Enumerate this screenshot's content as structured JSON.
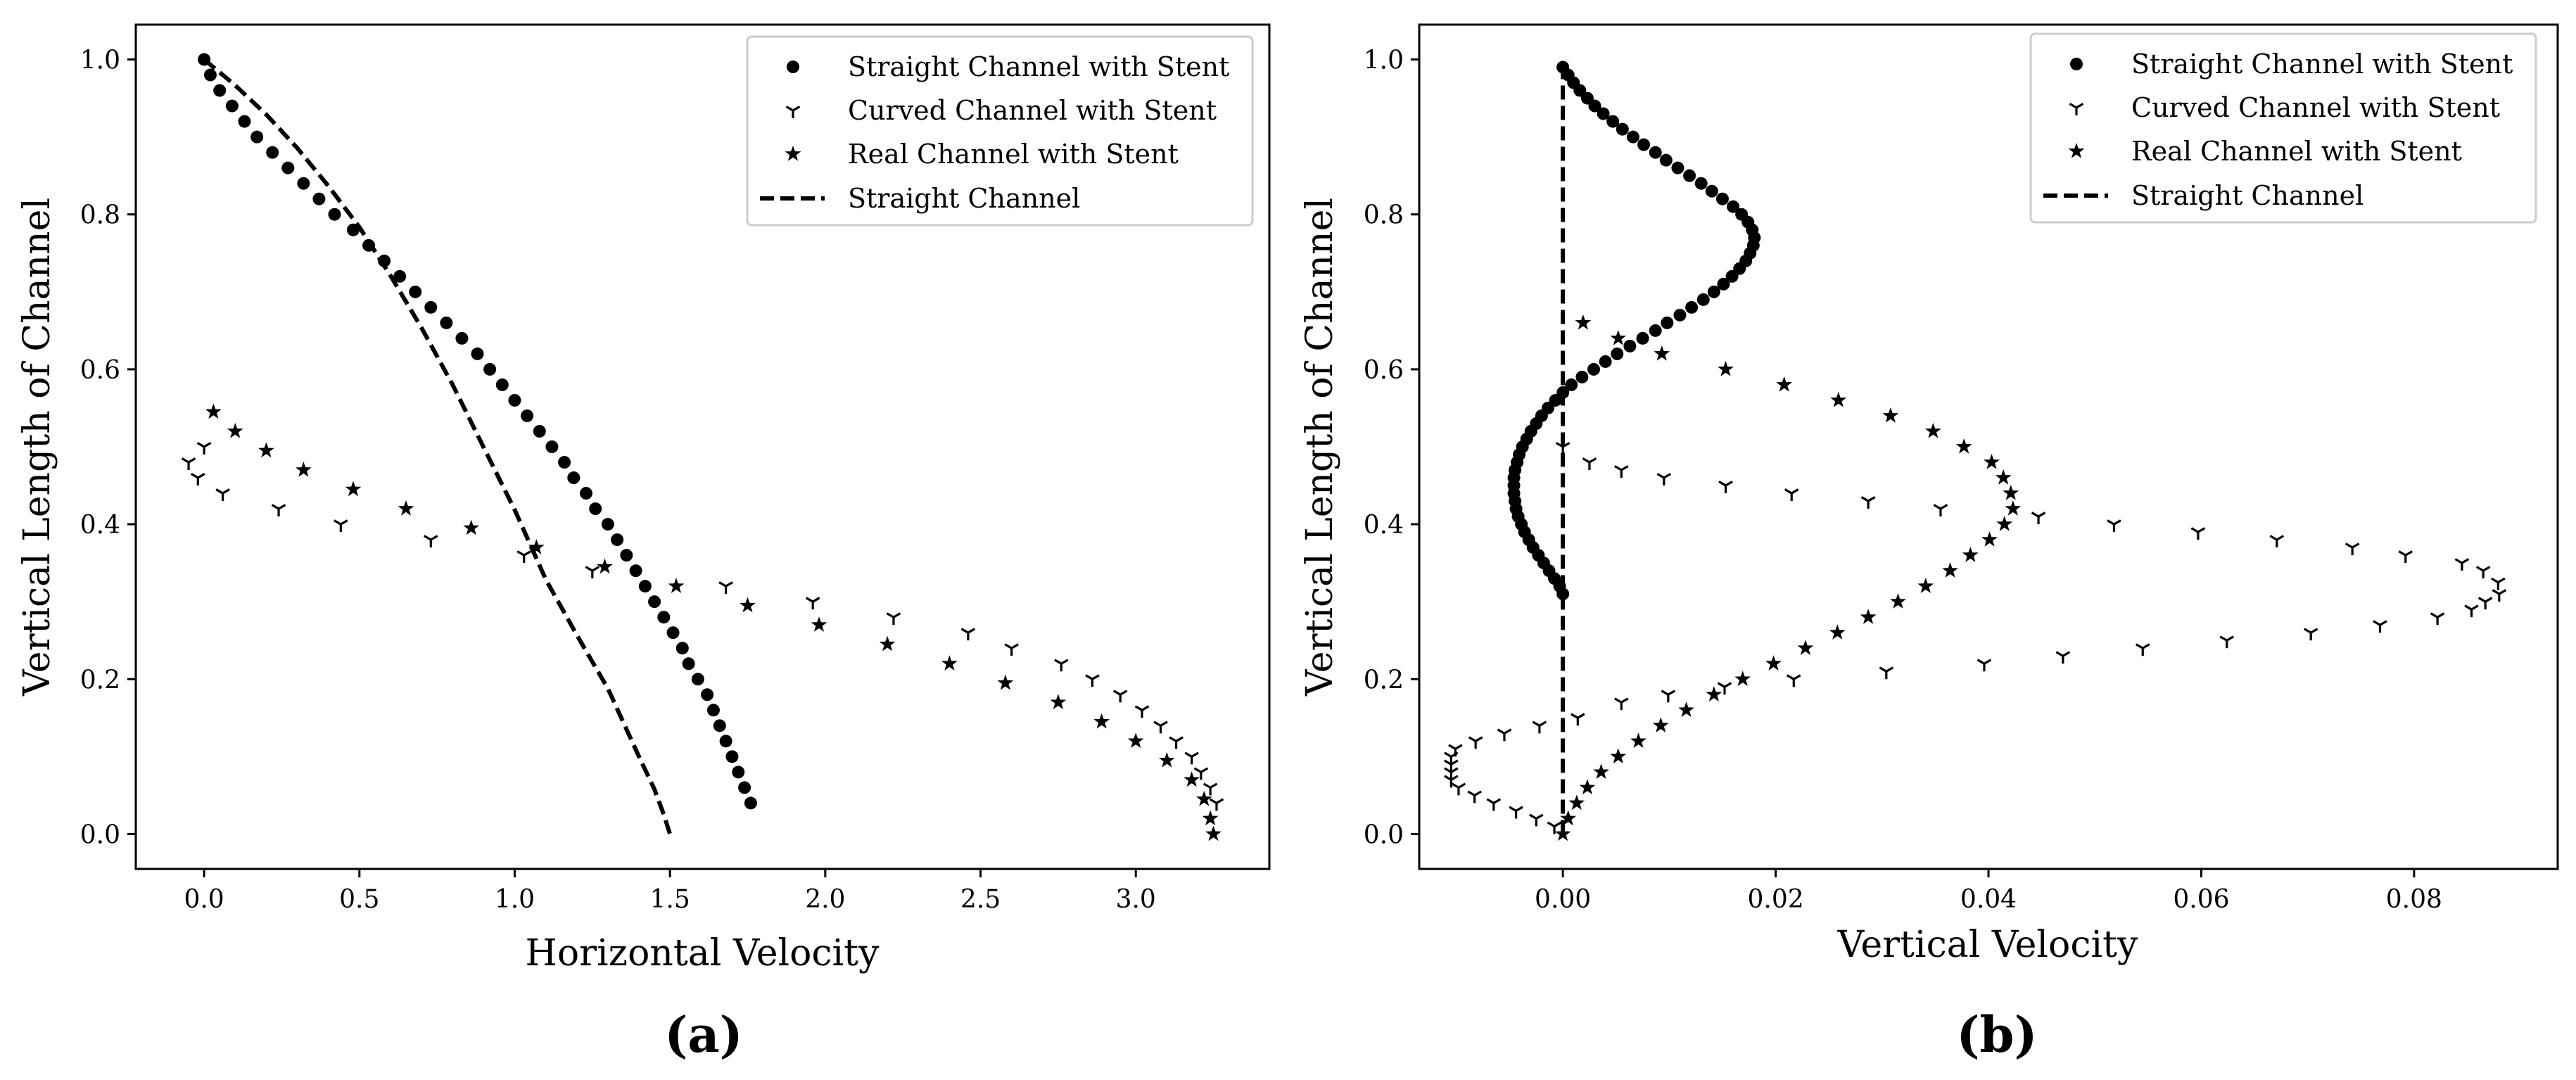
{
  "chart_data": [
    {
      "type": "scatter",
      "panel_label": "(a)",
      "xlabel": "Horizontal Velocity",
      "ylabel": "Vertical Length of Channel",
      "xlim": [
        -0.22,
        3.43
      ],
      "ylim": [
        -0.045,
        1.045
      ],
      "xticks": [
        "0.0",
        "0.5",
        "1.0",
        "1.5",
        "2.0",
        "2.5",
        "3.0"
      ],
      "yticks": [
        "0.0",
        "0.2",
        "0.4",
        "0.6",
        "0.8",
        "1.0"
      ],
      "legend_position": "top-right",
      "series": [
        {
          "name": "Straight Channel with Stent",
          "marker": "dot",
          "x": [
            0.0,
            0.02,
            0.05,
            0.09,
            0.13,
            0.17,
            0.22,
            0.27,
            0.32,
            0.37,
            0.42,
            0.48,
            0.53,
            0.58,
            0.63,
            0.68,
            0.73,
            0.78,
            0.83,
            0.88,
            0.92,
            0.96,
            1.0,
            1.04,
            1.08,
            1.12,
            1.16,
            1.19,
            1.23,
            1.26,
            1.3,
            1.33,
            1.36,
            1.39,
            1.42,
            1.45,
            1.48,
            1.51,
            1.54,
            1.56,
            1.59,
            1.62,
            1.64,
            1.66,
            1.68,
            1.7,
            1.72,
            1.74,
            1.76
          ],
          "y": [
            1.0,
            0.98,
            0.96,
            0.94,
            0.92,
            0.9,
            0.88,
            0.86,
            0.84,
            0.82,
            0.8,
            0.78,
            0.76,
            0.74,
            0.72,
            0.7,
            0.68,
            0.66,
            0.64,
            0.62,
            0.6,
            0.58,
            0.56,
            0.54,
            0.52,
            0.5,
            0.48,
            0.46,
            0.44,
            0.42,
            0.4,
            0.38,
            0.36,
            0.34,
            0.32,
            0.3,
            0.28,
            0.26,
            0.24,
            0.22,
            0.2,
            0.18,
            0.16,
            0.14,
            0.12,
            0.1,
            0.08,
            0.06,
            0.04
          ]
        },
        {
          "name": "Curved Channel with Stent",
          "marker": "tri",
          "x": [
            -0.05,
            0.0,
            -0.02,
            0.06,
            0.24,
            0.44,
            0.73,
            1.03,
            1.25,
            1.68,
            1.96,
            2.22,
            2.46,
            2.6,
            2.76,
            2.86,
            2.95,
            3.02,
            3.08,
            3.13,
            3.18,
            3.21,
            3.24,
            3.26
          ],
          "y": [
            0.48,
            0.5,
            0.46,
            0.44,
            0.42,
            0.4,
            0.38,
            0.36,
            0.34,
            0.32,
            0.3,
            0.28,
            0.26,
            0.24,
            0.22,
            0.2,
            0.18,
            0.16,
            0.14,
            0.12,
            0.1,
            0.08,
            0.06,
            0.04
          ]
        },
        {
          "name": "Real Channel with Stent",
          "marker": "star",
          "x": [
            0.03,
            0.1,
            0.2,
            0.32,
            0.48,
            0.65,
            0.86,
            1.07,
            1.29,
            1.52,
            1.75,
            1.98,
            2.2,
            2.4,
            2.58,
            2.75,
            2.89,
            3.0,
            3.1,
            3.18,
            3.22,
            3.24,
            3.25
          ],
          "y": [
            0.545,
            0.52,
            0.495,
            0.47,
            0.445,
            0.42,
            0.395,
            0.37,
            0.345,
            0.32,
            0.295,
            0.27,
            0.245,
            0.22,
            0.195,
            0.17,
            0.145,
            0.12,
            0.095,
            0.07,
            0.045,
            0.02,
            0.0
          ]
        },
        {
          "name": "Straight Channel",
          "marker": "dashed-line",
          "x": [
            0.0,
            0.1,
            0.2,
            0.3,
            0.4,
            0.5,
            0.6,
            0.7,
            0.8,
            0.9,
            1.0,
            1.1,
            1.2,
            1.3,
            1.4,
            1.45,
            1.48,
            1.5
          ],
          "y": [
            1.0,
            0.9667,
            0.9289,
            0.8856,
            0.8368,
            0.7835,
            0.7211,
            0.6535,
            0.5802,
            0.4994,
            0.4185,
            0.3289,
            0.2571,
            0.1879,
            0.1002,
            0.0578,
            0.0253,
            0.0
          ]
        }
      ]
    },
    {
      "type": "scatter",
      "panel_label": "(b)",
      "xlabel": "Vertical Velocity",
      "ylabel": "Vertical Length of Channel",
      "xlim": [
        -0.0135,
        0.0935
      ],
      "ylim": [
        -0.045,
        1.045
      ],
      "xticks": [
        "0.00",
        "0.02",
        "0.04",
        "0.06",
        "0.08"
      ],
      "yticks": [
        "0.0",
        "0.2",
        "0.4",
        "0.6",
        "0.8",
        "1.0"
      ],
      "legend_position": "top-right",
      "series": [
        {
          "name": "Straight Channel with Stent",
          "marker": "dot",
          "x": [
            0.0,
            0.0005,
            0.001,
            0.0016,
            0.0023,
            0.003,
            0.0038,
            0.0047,
            0.0056,
            0.0066,
            0.0076,
            0.0087,
            0.0097,
            0.0108,
            0.0119,
            0.013,
            0.014,
            0.015,
            0.016,
            0.0168,
            0.0174,
            0.0178,
            0.018,
            0.0179,
            0.0176,
            0.0172,
            0.0166,
            0.0159,
            0.0151,
            0.0142,
            0.0132,
            0.0121,
            0.011,
            0.0098,
            0.0087,
            0.0075,
            0.0063,
            0.0051,
            0.004,
            0.0029,
            0.0018,
            0.0008,
            0.0,
            -0.0007,
            -0.0014,
            -0.002,
            -0.0025,
            -0.003,
            -0.0034,
            -0.0038,
            -0.0041,
            -0.0043,
            -0.0045,
            -0.0046,
            -0.0046,
            -0.0046,
            -0.0045,
            -0.0044,
            -0.0042,
            -0.0039,
            -0.0036,
            -0.0032,
            -0.0028,
            -0.0023,
            -0.0018,
            -0.0013,
            -0.0008,
            -0.0003,
            0.0
          ],
          "y": [
            0.99,
            0.98,
            0.97,
            0.96,
            0.95,
            0.94,
            0.93,
            0.92,
            0.91,
            0.9,
            0.89,
            0.88,
            0.87,
            0.86,
            0.85,
            0.84,
            0.83,
            0.82,
            0.81,
            0.8,
            0.79,
            0.78,
            0.77,
            0.76,
            0.75,
            0.74,
            0.73,
            0.72,
            0.71,
            0.7,
            0.69,
            0.68,
            0.67,
            0.66,
            0.65,
            0.64,
            0.63,
            0.62,
            0.61,
            0.6,
            0.59,
            0.58,
            0.57,
            0.56,
            0.55,
            0.54,
            0.53,
            0.52,
            0.51,
            0.5,
            0.49,
            0.48,
            0.47,
            0.46,
            0.45,
            0.44,
            0.43,
            0.42,
            0.41,
            0.4,
            0.39,
            0.38,
            0.37,
            0.36,
            0.35,
            0.34,
            0.33,
            0.32,
            0.31
          ]
        },
        {
          "name": "Curved Channel with Stent",
          "marker": "tri",
          "x": [
            0.0,
            0.0025,
            0.0055,
            0.0095,
            0.0153,
            0.0215,
            0.0287,
            0.0355,
            0.0447,
            0.0518,
            0.0597,
            0.0671,
            0.0742,
            0.0792,
            0.0845,
            0.0865,
            0.0879,
            0.088,
            0.0867,
            0.0854,
            0.0822,
            0.0768,
            0.0703,
            0.0624,
            0.0545,
            0.047,
            0.0396,
            0.0304,
            0.0217,
            0.0152,
            0.0099,
            0.0055,
            0.0014,
            -0.0022,
            -0.0055,
            -0.0082,
            -0.0101,
            -0.0105,
            -0.0105,
            -0.0105,
            -0.0105,
            -0.0098,
            -0.0083,
            -0.0065,
            -0.0044,
            -0.0025,
            -0.0008
          ],
          "y": [
            0.5,
            0.48,
            0.47,
            0.46,
            0.45,
            0.44,
            0.43,
            0.42,
            0.41,
            0.4,
            0.39,
            0.38,
            0.37,
            0.36,
            0.35,
            0.34,
            0.325,
            0.31,
            0.3,
            0.29,
            0.28,
            0.27,
            0.26,
            0.25,
            0.24,
            0.23,
            0.22,
            0.21,
            0.2,
            0.19,
            0.18,
            0.17,
            0.15,
            0.14,
            0.13,
            0.12,
            0.11,
            0.1,
            0.09,
            0.08,
            0.07,
            0.06,
            0.05,
            0.04,
            0.03,
            0.02,
            0.01
          ]
        },
        {
          "name": "Real Channel with Stent",
          "marker": "star",
          "x": [
            0.0019,
            0.0052,
            0.0093,
            0.0153,
            0.0208,
            0.0259,
            0.0308,
            0.0348,
            0.0377,
            0.0403,
            0.0414,
            0.0421,
            0.0423,
            0.0415,
            0.0401,
            0.0383,
            0.0364,
            0.0341,
            0.0315,
            0.0287,
            0.0258,
            0.0228,
            0.0198,
            0.0169,
            0.0142,
            0.0116,
            0.0092,
            0.0071,
            0.0052,
            0.0036,
            0.0023,
            0.0013,
            0.0005,
            0.0
          ],
          "y": [
            0.66,
            0.64,
            0.62,
            0.6,
            0.58,
            0.56,
            0.54,
            0.52,
            0.5,
            0.48,
            0.46,
            0.44,
            0.42,
            0.4,
            0.38,
            0.36,
            0.34,
            0.32,
            0.3,
            0.28,
            0.26,
            0.24,
            0.22,
            0.2,
            0.18,
            0.16,
            0.14,
            0.12,
            0.1,
            0.08,
            0.06,
            0.04,
            0.02,
            0.0
          ]
        },
        {
          "name": "Straight Channel",
          "marker": "dashed-line",
          "x": [
            0.0,
            0.0
          ],
          "y": [
            0.0,
            1.0
          ]
        }
      ]
    }
  ]
}
